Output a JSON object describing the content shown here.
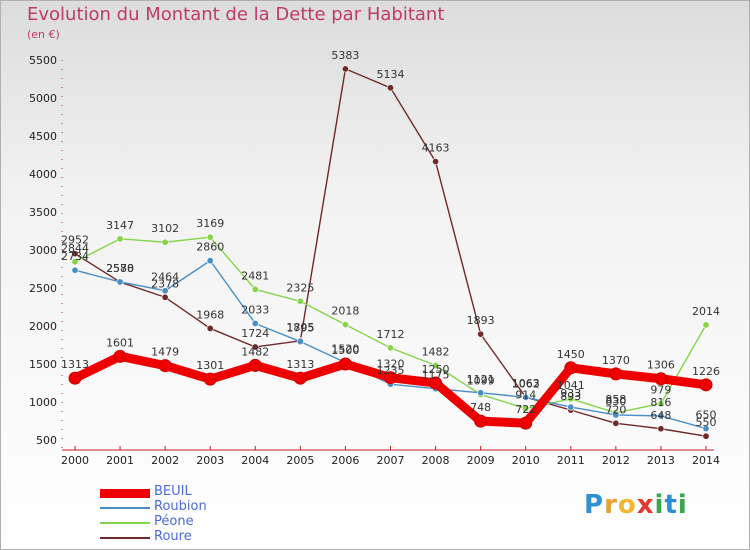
{
  "title": "Evolution du Montant de la Dette par Habitant",
  "subtitle": "(en €)",
  "logo": {
    "letters": [
      "P",
      "r",
      "o",
      "x",
      "i",
      "t",
      "i"
    ],
    "colors": [
      "#2f8fd6",
      "#e8a230",
      "#f0b830",
      "#e23a2e",
      "#3aa64a",
      "#2f8fd6",
      "#3aa64a"
    ]
  },
  "chart_data": {
    "type": "line",
    "title": "Evolution du Montant de la Dette par Habitant",
    "ylabel": "(en €)",
    "x": [
      "2000",
      "2001",
      "2002",
      "2003",
      "2004",
      "2005",
      "2006",
      "2007",
      "2008",
      "2009",
      "2010",
      "2011",
      "2012",
      "2013",
      "2014"
    ],
    "ylim": [
      500,
      5500
    ],
    "yticks": [
      500,
      1000,
      1500,
      2000,
      2500,
      3000,
      3500,
      4000,
      4500,
      5000,
      5500
    ],
    "grid": false,
    "legend": "bottom-left",
    "series": [
      {
        "name": "BEUIL",
        "color": "#ee0000",
        "values": [
          1313,
          1601,
          1479,
          1301,
          1482,
          1313,
          1500,
          1320,
          1250,
          748,
          722,
          1450,
          1370,
          1306,
          1226
        ]
      },
      {
        "name": "Roubion",
        "color": "#4a8fc4",
        "values": [
          2734,
          2580,
          2464,
          2860,
          2033,
          1795,
          1520,
          1235,
          1175,
          1121,
          1062,
          933,
          830,
          816,
          650
        ]
      },
      {
        "name": "Péone",
        "color": "#86d44a",
        "values": [
          2844,
          3147,
          3102,
          3169,
          2481,
          2325,
          2018,
          1712,
          1482,
          1099,
          914,
          1041,
          858,
          979,
          2014
        ]
      },
      {
        "name": "Roure",
        "color": "#6e2a2a",
        "values": [
          2952,
          2578,
          2378,
          1968,
          1724,
          1805,
          5383,
          5134,
          4163,
          1893,
          1063,
          893,
          720,
          648,
          550
        ]
      }
    ],
    "labels": [
      [
        1313,
        1601,
        1479,
        1301,
        1482,
        1313,
        1500,
        1320,
        1250,
        748,
        722,
        1450,
        1370,
        1306,
        1226
      ],
      [
        2734,
        2580,
        2464,
        2860,
        2033,
        1795,
        1520,
        1235,
        1175,
        1121,
        1062,
        933,
        830,
        816,
        650
      ],
      [
        2844,
        3147,
        3102,
        3169,
        2481,
        2325,
        2018,
        1712,
        1482,
        1099,
        914,
        1041,
        858,
        979,
        2014
      ],
      [
        2952,
        2578,
        2378,
        1968,
        1724,
        1805,
        5383,
        5134,
        4163,
        1893,
        1063,
        893,
        720,
        648,
        550
      ]
    ]
  }
}
